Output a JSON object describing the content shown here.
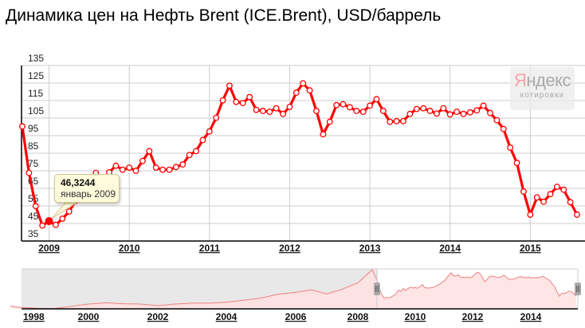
{
  "title": "Динамика цен на Нефть Brent (ICE.Brent), USD/баррель",
  "logo": {
    "brand_first": "Я",
    "brand_rest": "ндекс",
    "sub": "котировки"
  },
  "tooltip": {
    "value": "46,3244",
    "date": "январь 2009"
  },
  "colors": {
    "line": "#ff0000",
    "marker_fill": "#ffffff",
    "grid": "#cccccc",
    "navigator_fill": "#ffe0e0",
    "navigator_unselected": "#e8e8e8"
  },
  "chart_data": {
    "type": "line",
    "title": "Динамика цен на Нефть Brent (ICE.Brent), USD/баррель",
    "ylim": [
      35,
      135
    ],
    "y_ticks": [
      "35",
      "45",
      "55",
      "65",
      "75",
      "85",
      "95",
      "105",
      "115",
      "125",
      "135"
    ],
    "x_ticks": [
      "2009",
      "2010",
      "2011",
      "2012",
      "2013",
      "2014",
      "2015"
    ],
    "grid": true,
    "highlighted_point": {
      "x": "2009-01",
      "y": 46.3244
    },
    "series": [
      {
        "x": [
          "2008-09",
          "2008-10",
          "2008-11",
          "2008-12",
          "2009-01",
          "2009-02",
          "2009-03",
          "2009-04",
          "2009-05",
          "2009-06",
          "2009-07",
          "2009-08",
          "2009-09",
          "2009-10",
          "2009-11",
          "2009-12",
          "2010-01",
          "2010-02",
          "2010-03",
          "2010-04",
          "2010-05",
          "2010-06",
          "2010-07",
          "2010-08",
          "2010-09",
          "2010-10",
          "2010-11",
          "2010-12",
          "2011-01",
          "2011-02",
          "2011-03",
          "2011-04",
          "2011-05",
          "2011-06",
          "2011-07",
          "2011-08",
          "2011-09",
          "2011-10",
          "2011-11",
          "2011-12",
          "2012-01",
          "2012-02",
          "2012-03",
          "2012-04",
          "2012-05",
          "2012-06",
          "2012-07",
          "2012-08",
          "2012-09",
          "2012-10",
          "2012-11",
          "2012-12",
          "2013-01",
          "2013-02",
          "2013-03",
          "2013-04",
          "2013-05",
          "2013-06",
          "2013-07",
          "2013-08",
          "2013-09",
          "2013-10",
          "2013-11",
          "2013-12",
          "2014-01",
          "2014-02",
          "2014-03",
          "2014-04",
          "2014-05",
          "2014-06",
          "2014-07",
          "2014-08",
          "2014-09",
          "2014-10",
          "2014-11",
          "2014-12",
          "2015-01",
          "2015-02",
          "2015-03",
          "2015-04",
          "2015-05",
          "2015-06",
          "2015-07",
          "2015-08"
        ],
        "values": [
          100.3,
          73.8,
          54.9,
          43.8,
          46.3244,
          44.2,
          47.7,
          51.8,
          58,
          69,
          65,
          73.8,
          68,
          74.1,
          77.9,
          75.6,
          76.8,
          75,
          80.6,
          86.2,
          76.8,
          75.6,
          75.6,
          77.1,
          78.6,
          84,
          86.2,
          92.5,
          97.4,
          105.2,
          115.1,
          123.5,
          114.2,
          113.6,
          117,
          109.7,
          109.1,
          108.6,
          110.6,
          107.4,
          111.4,
          119.5,
          124.8,
          120.8,
          109.1,
          95.8,
          102.9,
          112.4,
          112.9,
          111.2,
          109.1,
          108.6,
          112.1,
          115.8,
          109.1,
          102.9,
          103.3,
          103.3,
          107.4,
          110.2,
          110.6,
          109.1,
          107.6,
          110.6,
          107.1,
          108.6,
          107.4,
          108.3,
          109.4,
          112.1,
          107.9,
          103.8,
          98.8,
          88.2,
          79.5,
          63.2,
          50,
          59.8,
          57.4,
          61.7,
          65.9,
          64.2,
          57.1,
          50
        ]
      }
    ],
    "navigator": {
      "x_ticks": [
        "1998",
        "2000",
        "2002",
        "2004",
        "2006",
        "2008",
        "2010",
        "2012",
        "2014"
      ],
      "selected_range": [
        "2008-09",
        "2015-08"
      ],
      "history": {
        "x": [
          1997.75,
          1998,
          1998.5,
          1999,
          1999.5,
          2000,
          2000.5,
          2001,
          2001.5,
          2002,
          2002.5,
          2003,
          2003.5,
          2004,
          2004.5,
          2005,
          2005.5,
          2006,
          2006.5,
          2007,
          2007.5,
          2008,
          2008.5
        ],
        "values": [
          19,
          15,
          12,
          11,
          18,
          25,
          29,
          26,
          25,
          20,
          25,
          28,
          28,
          31,
          37,
          44,
          56,
          62,
          70,
          57,
          72,
          92,
          133
        ]
      }
    }
  }
}
